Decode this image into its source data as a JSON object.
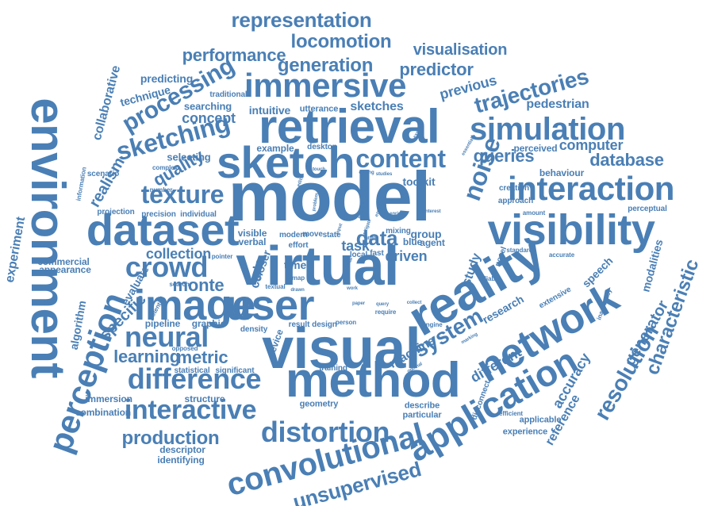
{
  "cloud": {
    "color": "#4a7fb5",
    "words": [
      "model",
      "virtual",
      "visual",
      "reality",
      "method",
      "environment",
      "retrieval",
      "sketch",
      "image",
      "user",
      "dataset",
      "visibility",
      "network",
      "application",
      "immersive",
      "perception",
      "interaction",
      "simulation",
      "convolutional",
      "distortion",
      "difference",
      "neural",
      "crowd",
      "interactive",
      "noise",
      "content",
      "texture",
      "sketching",
      "processing",
      "trajectories",
      "representation",
      "locomotion",
      "performance",
      "generation",
      "predictor",
      "visualisation",
      "system",
      "production",
      "characteristic",
      "resolution",
      "unsupervised",
      "quality",
      "data",
      "queries",
      "database",
      "computer",
      "generator",
      "monte",
      "learning",
      "metric",
      "collection",
      "specific",
      "previous",
      "pedestrian",
      "concept",
      "realism",
      "collaborative",
      "predicting",
      "technique",
      "searching",
      "intuitive",
      "utterance",
      "sketches",
      "traditional",
      "selecting",
      "task",
      "driven",
      "study",
      "different",
      "accuracy",
      "reference",
      "speech",
      "modalities",
      "experiment",
      "algorithm",
      "commercial",
      "appearance",
      "evaluate",
      "pipeline",
      "graphic",
      "structure",
      "combination",
      "immersion",
      "descriptor",
      "identifying",
      "geometry",
      "describe",
      "particular",
      "experience",
      "applicable",
      "machine",
      "research",
      "extensive",
      "perceptual",
      "behaviour",
      "creation",
      "approach",
      "perceived",
      "toolkit",
      "example",
      "desktop",
      "local",
      "time",
      "fast",
      "group",
      "agent",
      "blue",
      "mixing",
      "visible",
      "verbal",
      "effort",
      "modern",
      "move",
      "state",
      "closer",
      "device",
      "carlo",
      "density",
      "result",
      "design",
      "person",
      "training",
      "statistical",
      "significant",
      "opposed",
      "potential",
      "textual",
      "search",
      "pointer",
      "precision",
      "individual",
      "projection",
      "number",
      "information",
      "scenario",
      "complex",
      "problem",
      "explore",
      "essential",
      "interest",
      "amount",
      "standard",
      "accurate",
      "novel",
      "reliable",
      "inaccuracy",
      "engine",
      "marking",
      "optimal",
      "disconnect",
      "efficient",
      "query",
      "collect",
      "require",
      "paper",
      "drawn",
      "work",
      "map",
      "real",
      "input",
      "mitigate",
      "utility",
      "edits",
      "touch",
      "editing",
      "studies",
      "procedure",
      "enrich",
      "enrich",
      "entire"
    ]
  }
}
